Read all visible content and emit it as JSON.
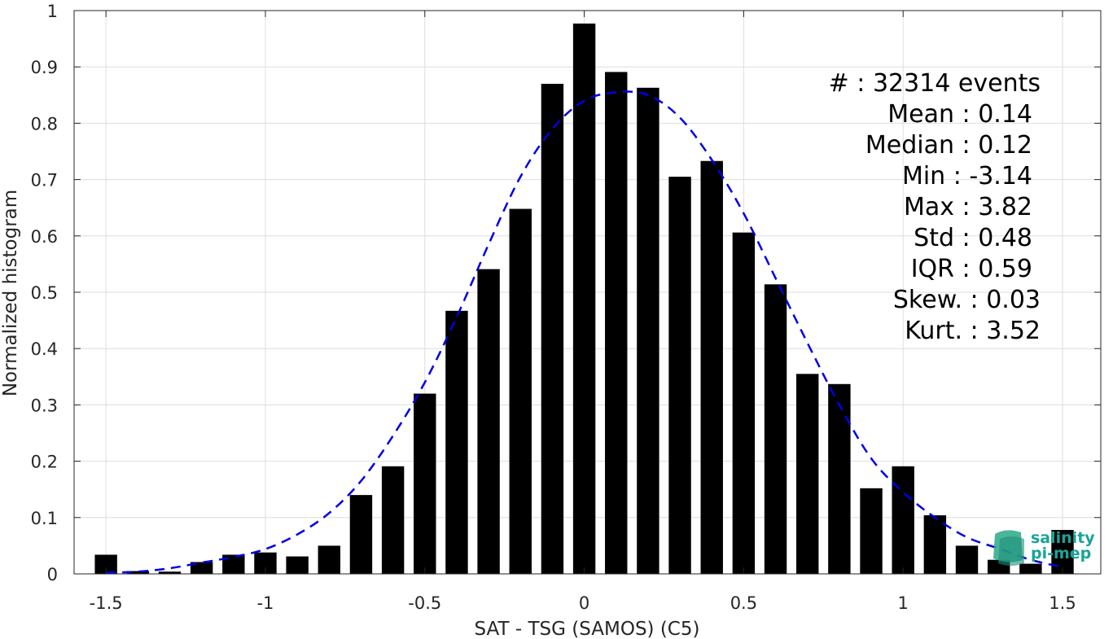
{
  "chart_data": {
    "type": "bar",
    "xlabel": "SAT - TSG (SAMOS) (C5)",
    "ylabel": "Normalized histogram",
    "xlim": [
      -1.6,
      1.62
    ],
    "ylim": [
      0,
      1
    ],
    "grid": true,
    "x_ticks": [
      {
        "value": -1.5,
        "label": "-1.5"
      },
      {
        "value": -1,
        "label": "-1"
      },
      {
        "value": -0.5,
        "label": "-0.5"
      },
      {
        "value": 0,
        "label": "0"
      },
      {
        "value": 0.5,
        "label": "0.5"
      },
      {
        "value": 1,
        "label": "1"
      },
      {
        "value": 1.5,
        "label": "1.5"
      }
    ],
    "y_ticks": [
      {
        "value": 0,
        "label": "0"
      },
      {
        "value": 0.1,
        "label": "0.1"
      },
      {
        "value": 0.2,
        "label": "0.2"
      },
      {
        "value": 0.3,
        "label": "0.3"
      },
      {
        "value": 0.4,
        "label": "0.4"
      },
      {
        "value": 0.5,
        "label": "0.5"
      },
      {
        "value": 0.6,
        "label": "0.6"
      },
      {
        "value": 0.7,
        "label": "0.7"
      },
      {
        "value": 0.8,
        "label": "0.8"
      },
      {
        "value": 0.9,
        "label": "0.9"
      },
      {
        "value": 1,
        "label": "1"
      }
    ],
    "bar_width": 0.07,
    "bar_color": "#000000",
    "bins": [
      -1.5,
      -1.4,
      -1.3,
      -1.2,
      -1.1,
      -1.0,
      -0.9,
      -0.8,
      -0.7,
      -0.6,
      -0.5,
      -0.4,
      -0.3,
      -0.2,
      -0.1,
      0.0,
      0.1,
      0.2,
      0.3,
      0.4,
      0.5,
      0.6,
      0.7,
      0.8,
      0.9,
      1.0,
      1.1,
      1.2,
      1.3,
      1.4,
      1.5
    ],
    "values": [
      0.034,
      0.005,
      0.004,
      0.021,
      0.034,
      0.038,
      0.031,
      0.05,
      0.14,
      0.191,
      0.32,
      0.467,
      0.541,
      0.648,
      0.87,
      0.977,
      0.891,
      0.863,
      0.705,
      0.733,
      0.606,
      0.514,
      0.355,
      0.337,
      0.152,
      0.191,
      0.104,
      0.05,
      0.025,
      0.018,
      0.078
    ],
    "fit": {
      "style": "dashed",
      "color": "#0000e6",
      "x": [
        -1.5,
        -1.4,
        -1.3,
        -1.2,
        -1.1,
        -1.0,
        -0.9,
        -0.8,
        -0.7,
        -0.6,
        -0.5,
        -0.4,
        -0.3,
        -0.2,
        -0.1,
        0.0,
        0.1,
        0.2,
        0.3,
        0.4,
        0.5,
        0.6,
        0.7,
        0.8,
        0.9,
        1.0,
        1.1,
        1.2,
        1.3,
        1.4,
        1.5
      ],
      "y": [
        0.002,
        0.004,
        0.01,
        0.02,
        0.03,
        0.044,
        0.07,
        0.108,
        0.165,
        0.245,
        0.34,
        0.456,
        0.585,
        0.705,
        0.79,
        0.84,
        0.855,
        0.85,
        0.81,
        0.735,
        0.64,
        0.525,
        0.41,
        0.3,
        0.205,
        0.145,
        0.1,
        0.065,
        0.045,
        0.025,
        0.012
      ]
    },
    "stats": [
      "#  : 32314 events",
      "Mean : 0.14",
      "Median : 0.12",
      "Min : -3.14",
      "Max : 3.82",
      "Std : 0.48",
      "IQR : 0.59",
      "Skew. : 0.03",
      "Kurt. : 3.52"
    ],
    "stats_align": "right"
  },
  "logo": {
    "line1": "salinity",
    "line2": "pi-mep",
    "color_text": "#1aa39a",
    "color_icon": "#2aa88a"
  },
  "colors": {
    "axis": "#262626",
    "grid": "#dedede",
    "background": "#ffffff"
  }
}
